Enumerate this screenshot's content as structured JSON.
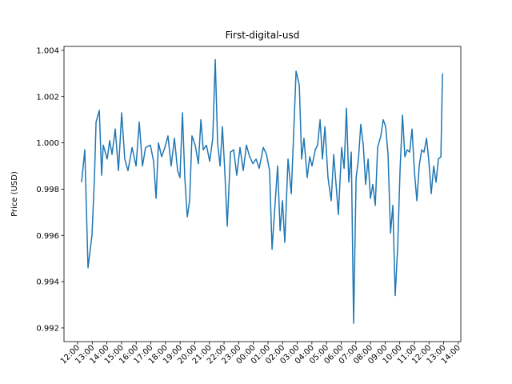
{
  "chart_data": {
    "type": "line",
    "title": "First-digital-usd",
    "y_label": "Price (USD)",
    "color": "#1f77b4",
    "x": [
      0.27,
      0.49,
      0.71,
      0.98,
      1.15,
      1.26,
      1.48,
      1.64,
      1.75,
      2.02,
      2.19,
      2.35,
      2.57,
      2.79,
      3.01,
      3.22,
      3.44,
      3.72,
      3.99,
      4.21,
      4.43,
      4.64,
      4.97,
      5.19,
      5.36,
      5.52,
      5.74,
      5.96,
      6.17,
      6.39,
      6.61,
      6.83,
      6.99,
      7.16,
      7.32,
      7.49,
      7.65,
      7.81,
      8.03,
      8.25,
      8.42,
      8.58,
      8.8,
      9.02,
      9.23,
      9.4,
      9.56,
      9.73,
      9.89,
      10.05,
      10.22,
      10.44,
      10.66,
      10.87,
      11.09,
      11.31,
      11.53,
      11.75,
      11.97,
      12.19,
      12.4,
      12.68,
      12.9,
      13.11,
      13.28,
      13.5,
      13.66,
      13.83,
      13.99,
      14.15,
      14.37,
      14.59,
      14.75,
      14.92,
      15.14,
      15.3,
      15.46,
      15.68,
      15.85,
      16.01,
      16.23,
      16.39,
      16.56,
      16.72,
      16.89,
      17.1,
      17.32,
      17.49,
      17.65,
      17.81,
      18.03,
      18.2,
      18.36,
      18.52,
      18.69,
      18.85,
      19.02,
      19.18,
      19.34,
      19.51,
      19.67,
      19.84,
      20.0,
      20.16,
      20.33,
      20.49,
      20.71,
      20.87,
      21.04,
      21.2,
      21.37,
      21.53,
      21.69,
      21.86,
      22.02,
      22.19,
      22.35,
      22.51,
      22.68,
      22.84,
      23.01,
      23.17,
      23.33,
      23.5,
      23.66,
      23.83,
      23.99,
      24.15,
      24.32,
      24.48,
      24.64,
      24.81,
      24.92
    ],
    "values": [
      0.9983,
      0.9997,
      0.9946,
      0.996,
      0.9985,
      1.0009,
      1.0014,
      0.9986,
      0.9999,
      0.9993,
      1.0001,
      0.9995,
      1.0006,
      0.9988,
      1.0013,
      0.9993,
      0.9988,
      0.9998,
      0.999,
      1.0009,
      0.999,
      0.9998,
      0.9999,
      0.9992,
      0.9976,
      1.0,
      0.9994,
      0.9998,
      1.0003,
      0.999,
      1.0002,
      0.9988,
      0.9985,
      1.0013,
      0.9985,
      0.9968,
      0.9975,
      1.0003,
      0.9999,
      0.9991,
      1.001,
      0.9997,
      0.9999,
      0.9992,
      1.0002,
      1.0036,
      1.0,
      0.999,
      1.0007,
      0.9988,
      0.9964,
      0.9996,
      0.9997,
      0.9986,
      0.9998,
      0.9988,
      0.9999,
      0.9994,
      0.9991,
      0.9993,
      0.9989,
      0.9998,
      0.9995,
      0.9988,
      0.9954,
      0.9975,
      0.999,
      0.9962,
      0.9975,
      0.9957,
      0.9993,
      0.9978,
      1.0003,
      1.0031,
      1.0025,
      0.9993,
      1.0002,
      0.9985,
      0.9994,
      0.999,
      0.9997,
      0.9999,
      1.001,
      0.9993,
      1.0007,
      0.9985,
      0.9975,
      0.9995,
      0.9982,
      0.9969,
      0.9998,
      0.9989,
      1.0015,
      0.9983,
      0.9996,
      0.9922,
      0.9985,
      0.9993,
      1.0008,
      0.9999,
      0.9982,
      0.9993,
      0.9976,
      0.9982,
      0.9973,
      0.9998,
      1.0003,
      1.001,
      1.0007,
      0.9995,
      0.9961,
      0.9973,
      0.9934,
      0.9955,
      0.9988,
      1.0012,
      0.9994,
      0.9997,
      0.9996,
      1.0006,
      0.9987,
      0.9975,
      0.999,
      0.9997,
      0.9996,
      1.0002,
      0.9992,
      0.9978,
      0.999,
      0.9983,
      0.9993,
      0.9994,
      1.003
    ],
    "xlim": [
      -0.93,
      26.17
    ],
    "ylim": [
      0.99141,
      1.00417
    ],
    "xticks": [
      {
        "value": 0,
        "label": "12:00"
      },
      {
        "value": 1,
        "label": "13:00"
      },
      {
        "value": 2,
        "label": "14:00"
      },
      {
        "value": 3,
        "label": "15:00"
      },
      {
        "value": 4,
        "label": "16:00"
      },
      {
        "value": 5,
        "label": "17:00"
      },
      {
        "value": 6,
        "label": "18:00"
      },
      {
        "value": 7,
        "label": "19:00"
      },
      {
        "value": 8,
        "label": "20:00"
      },
      {
        "value": 9,
        "label": "21:00"
      },
      {
        "value": 10,
        "label": "22:00"
      },
      {
        "value": 11,
        "label": "23:00"
      },
      {
        "value": 12,
        "label": "00:00"
      },
      {
        "value": 13,
        "label": "01:00"
      },
      {
        "value": 14,
        "label": "02:00"
      },
      {
        "value": 15,
        "label": "03:00"
      },
      {
        "value": 16,
        "label": "04:00"
      },
      {
        "value": 17,
        "label": "05:00"
      },
      {
        "value": 18,
        "label": "06:00"
      },
      {
        "value": 19,
        "label": "07:00"
      },
      {
        "value": 20,
        "label": "08:00"
      },
      {
        "value": 21,
        "label": "09:00"
      },
      {
        "value": 22,
        "label": "10:00"
      },
      {
        "value": 23,
        "label": "11:00"
      },
      {
        "value": 24,
        "label": "12:00"
      },
      {
        "value": 25,
        "label": "13:00"
      },
      {
        "value": 26,
        "label": "14:00"
      }
    ],
    "yticks": [
      0.992,
      0.994,
      0.996,
      0.998,
      {
        "value": 1,
        "label": "1.000"
      },
      1.002,
      1.004
    ]
  }
}
